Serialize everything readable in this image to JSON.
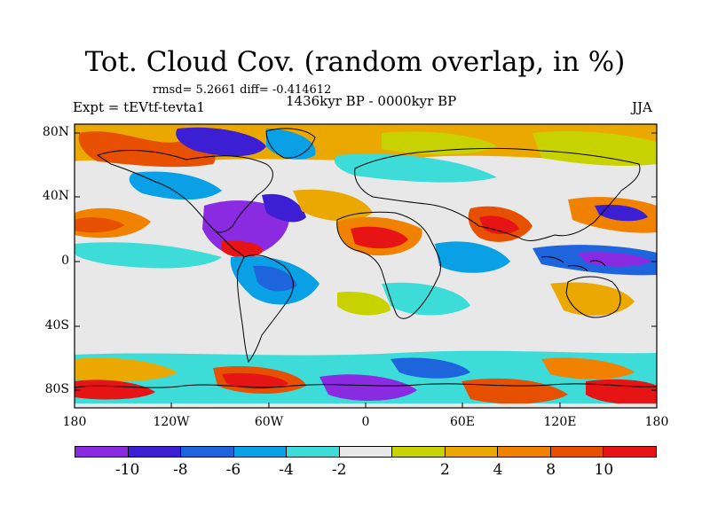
{
  "title": "Tot. Cloud Cov. (random overlap, in %)",
  "stats": "rmsd= 5.2661 diff= -0.414612",
  "experiment": "Expt = tEVtf-tevta1",
  "period": "1436kyr BP - 0000kyr BP",
  "season": "JJA",
  "axes": {
    "lat_ticks": [
      "80N",
      "40N",
      "0",
      "40S",
      "80S"
    ],
    "lon_ticks": [
      "180",
      "120W",
      "60W",
      "0",
      "60E",
      "120E",
      "180"
    ]
  },
  "colorbar": {
    "colors": [
      "#8a2be2",
      "#3c1fd2",
      "#1e64dc",
      "#0aa0e6",
      "#3ddcd8",
      "#e8e8e8",
      "#c8d200",
      "#eba800",
      "#f08200",
      "#e65000",
      "#e61414"
    ],
    "labels": [
      "-10",
      "-8",
      "-6",
      "-4",
      "-2",
      "2",
      "4",
      "8",
      "10"
    ]
  },
  "background_color": "#e8e8e8"
}
